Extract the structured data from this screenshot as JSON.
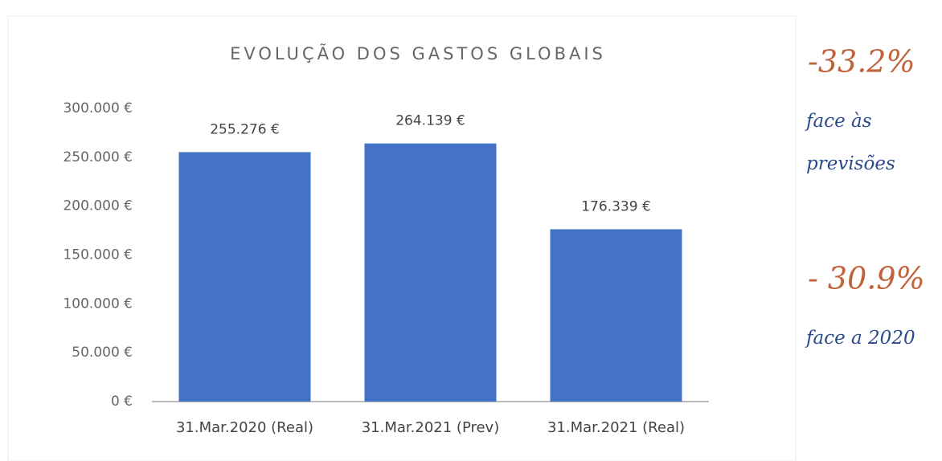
{
  "chart_data": {
    "type": "bar",
    "title": "EVOLUÇÃO DOS GASTOS GLOBAIS",
    "categories": [
      "31.Mar.2020 (Real)",
      "31.Mar.2021 (Prev)",
      "31.Mar.2021 (Real)"
    ],
    "values": [
      255276,
      264139,
      176339
    ],
    "value_labels": [
      "255.276 €",
      "264.139 €",
      "176.339 €"
    ],
    "color": "#4472c4",
    "ylim": [
      0,
      300000
    ],
    "yticks": [
      {
        "value": 0,
        "label": "0 €"
      },
      {
        "value": 50000,
        "label": "50.000 €"
      },
      {
        "value": 100000,
        "label": "100.000 €"
      },
      {
        "value": 150000,
        "label": "150.000 €"
      },
      {
        "value": 200000,
        "label": "200.000 €"
      },
      {
        "value": 250000,
        "label": "250.000 €"
      },
      {
        "value": 300000,
        "label": "300.000 €"
      }
    ],
    "grid": false
  },
  "annotations": [
    {
      "label": "-33.2%",
      "note": [
        "face às",
        "previsões"
      ]
    },
    {
      "label": "- 30.9%",
      "note": [
        "face a 2020"
      ]
    }
  ]
}
